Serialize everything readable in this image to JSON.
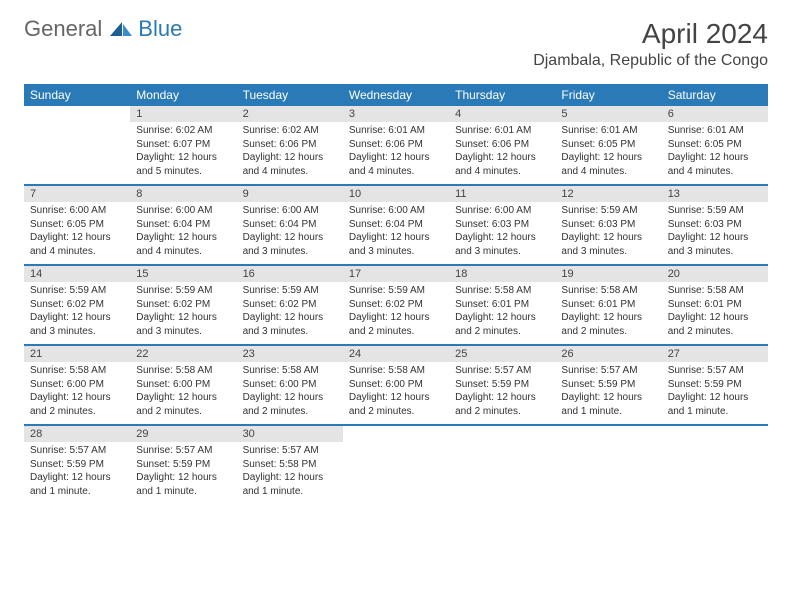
{
  "brand": {
    "part1": "General",
    "part2": "Blue"
  },
  "colors": {
    "brand_blue": "#2a7ab8",
    "header_bg": "#2a7ab8",
    "header_text": "#ffffff",
    "daynum_bg": "#e4e4e4",
    "body_text": "#333333",
    "rule": "#2a7ab8",
    "page_bg": "#ffffff"
  },
  "title": "April 2024",
  "location": "Djambala, Republic of the Congo",
  "weekdays": [
    "Sunday",
    "Monday",
    "Tuesday",
    "Wednesday",
    "Thursday",
    "Friday",
    "Saturday"
  ],
  "weeks": [
    [
      {
        "empty": true
      },
      {
        "day": "1",
        "sunrise": "Sunrise: 6:02 AM",
        "sunset": "Sunset: 6:07 PM",
        "daylight": "Daylight: 12 hours and 5 minutes."
      },
      {
        "day": "2",
        "sunrise": "Sunrise: 6:02 AM",
        "sunset": "Sunset: 6:06 PM",
        "daylight": "Daylight: 12 hours and 4 minutes."
      },
      {
        "day": "3",
        "sunrise": "Sunrise: 6:01 AM",
        "sunset": "Sunset: 6:06 PM",
        "daylight": "Daylight: 12 hours and 4 minutes."
      },
      {
        "day": "4",
        "sunrise": "Sunrise: 6:01 AM",
        "sunset": "Sunset: 6:06 PM",
        "daylight": "Daylight: 12 hours and 4 minutes."
      },
      {
        "day": "5",
        "sunrise": "Sunrise: 6:01 AM",
        "sunset": "Sunset: 6:05 PM",
        "daylight": "Daylight: 12 hours and 4 minutes."
      },
      {
        "day": "6",
        "sunrise": "Sunrise: 6:01 AM",
        "sunset": "Sunset: 6:05 PM",
        "daylight": "Daylight: 12 hours and 4 minutes."
      }
    ],
    [
      {
        "day": "7",
        "sunrise": "Sunrise: 6:00 AM",
        "sunset": "Sunset: 6:05 PM",
        "daylight": "Daylight: 12 hours and 4 minutes."
      },
      {
        "day": "8",
        "sunrise": "Sunrise: 6:00 AM",
        "sunset": "Sunset: 6:04 PM",
        "daylight": "Daylight: 12 hours and 4 minutes."
      },
      {
        "day": "9",
        "sunrise": "Sunrise: 6:00 AM",
        "sunset": "Sunset: 6:04 PM",
        "daylight": "Daylight: 12 hours and 3 minutes."
      },
      {
        "day": "10",
        "sunrise": "Sunrise: 6:00 AM",
        "sunset": "Sunset: 6:04 PM",
        "daylight": "Daylight: 12 hours and 3 minutes."
      },
      {
        "day": "11",
        "sunrise": "Sunrise: 6:00 AM",
        "sunset": "Sunset: 6:03 PM",
        "daylight": "Daylight: 12 hours and 3 minutes."
      },
      {
        "day": "12",
        "sunrise": "Sunrise: 5:59 AM",
        "sunset": "Sunset: 6:03 PM",
        "daylight": "Daylight: 12 hours and 3 minutes."
      },
      {
        "day": "13",
        "sunrise": "Sunrise: 5:59 AM",
        "sunset": "Sunset: 6:03 PM",
        "daylight": "Daylight: 12 hours and 3 minutes."
      }
    ],
    [
      {
        "day": "14",
        "sunrise": "Sunrise: 5:59 AM",
        "sunset": "Sunset: 6:02 PM",
        "daylight": "Daylight: 12 hours and 3 minutes."
      },
      {
        "day": "15",
        "sunrise": "Sunrise: 5:59 AM",
        "sunset": "Sunset: 6:02 PM",
        "daylight": "Daylight: 12 hours and 3 minutes."
      },
      {
        "day": "16",
        "sunrise": "Sunrise: 5:59 AM",
        "sunset": "Sunset: 6:02 PM",
        "daylight": "Daylight: 12 hours and 3 minutes."
      },
      {
        "day": "17",
        "sunrise": "Sunrise: 5:59 AM",
        "sunset": "Sunset: 6:02 PM",
        "daylight": "Daylight: 12 hours and 2 minutes."
      },
      {
        "day": "18",
        "sunrise": "Sunrise: 5:58 AM",
        "sunset": "Sunset: 6:01 PM",
        "daylight": "Daylight: 12 hours and 2 minutes."
      },
      {
        "day": "19",
        "sunrise": "Sunrise: 5:58 AM",
        "sunset": "Sunset: 6:01 PM",
        "daylight": "Daylight: 12 hours and 2 minutes."
      },
      {
        "day": "20",
        "sunrise": "Sunrise: 5:58 AM",
        "sunset": "Sunset: 6:01 PM",
        "daylight": "Daylight: 12 hours and 2 minutes."
      }
    ],
    [
      {
        "day": "21",
        "sunrise": "Sunrise: 5:58 AM",
        "sunset": "Sunset: 6:00 PM",
        "daylight": "Daylight: 12 hours and 2 minutes."
      },
      {
        "day": "22",
        "sunrise": "Sunrise: 5:58 AM",
        "sunset": "Sunset: 6:00 PM",
        "daylight": "Daylight: 12 hours and 2 minutes."
      },
      {
        "day": "23",
        "sunrise": "Sunrise: 5:58 AM",
        "sunset": "Sunset: 6:00 PM",
        "daylight": "Daylight: 12 hours and 2 minutes."
      },
      {
        "day": "24",
        "sunrise": "Sunrise: 5:58 AM",
        "sunset": "Sunset: 6:00 PM",
        "daylight": "Daylight: 12 hours and 2 minutes."
      },
      {
        "day": "25",
        "sunrise": "Sunrise: 5:57 AM",
        "sunset": "Sunset: 5:59 PM",
        "daylight": "Daylight: 12 hours and 2 minutes."
      },
      {
        "day": "26",
        "sunrise": "Sunrise: 5:57 AM",
        "sunset": "Sunset: 5:59 PM",
        "daylight": "Daylight: 12 hours and 1 minute."
      },
      {
        "day": "27",
        "sunrise": "Sunrise: 5:57 AM",
        "sunset": "Sunset: 5:59 PM",
        "daylight": "Daylight: 12 hours and 1 minute."
      }
    ],
    [
      {
        "day": "28",
        "sunrise": "Sunrise: 5:57 AM",
        "sunset": "Sunset: 5:59 PM",
        "daylight": "Daylight: 12 hours and 1 minute."
      },
      {
        "day": "29",
        "sunrise": "Sunrise: 5:57 AM",
        "sunset": "Sunset: 5:59 PM",
        "daylight": "Daylight: 12 hours and 1 minute."
      },
      {
        "day": "30",
        "sunrise": "Sunrise: 5:57 AM",
        "sunset": "Sunset: 5:58 PM",
        "daylight": "Daylight: 12 hours and 1 minute."
      },
      {
        "empty": true
      },
      {
        "empty": true
      },
      {
        "empty": true
      },
      {
        "empty": true
      }
    ]
  ]
}
